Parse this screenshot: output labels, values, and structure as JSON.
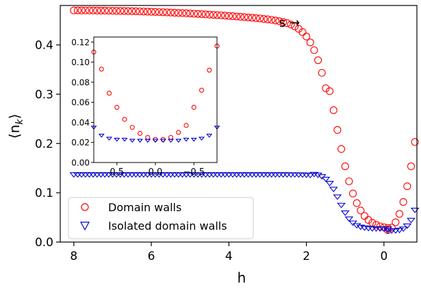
{
  "chart_data": [
    {
      "type": "scatter",
      "xlabel": "h",
      "ylabel": "⟨n_k⟩",
      "xlim": [
        8.35,
        -0.85
      ],
      "ylim": [
        0.0,
        0.48
      ],
      "x_ticks": [
        8,
        6,
        4,
        2,
        0
      ],
      "y_ticks": [
        0.0,
        0.1,
        0.2,
        0.3,
        0.4
      ],
      "x_tick_labels": [
        "8",
        "6",
        "4",
        "2",
        "0"
      ],
      "y_tick_labels": [
        "0.0",
        "0.1",
        "0.2",
        "0.3",
        "0.4"
      ],
      "annotation": "s →",
      "legend_position": "lower-left",
      "series": [
        {
          "name": "Domain walls",
          "marker": "circle",
          "color": "#ff0000",
          "x": [],
          "y": []
        },
        {
          "name": "Isolated domain walls",
          "marker": "triangle-down",
          "color": "#0000cc",
          "x": [],
          "y": []
        }
      ]
    },
    {
      "type": "scatter",
      "xlim": [
        0.8,
        -0.8
      ],
      "ylim": [
        0.0,
        0.125
      ],
      "x_ticks": [
        0.5,
        0.0,
        -0.5
      ],
      "y_ticks": [
        0.0,
        0.02,
        0.04,
        0.06,
        0.08,
        0.1,
        0.12
      ],
      "x_tick_labels": [
        "0.5",
        "0.0",
        "−0.5"
      ],
      "y_tick_labels": [
        "0.00",
        "0.02",
        "0.04",
        "0.06",
        "0.08",
        "0.10",
        "0.12"
      ],
      "series": [
        {
          "marker": "circle",
          "color": "#ff0000",
          "x": [
            0.8,
            0.7,
            0.6,
            0.5,
            0.4,
            0.3,
            0.2,
            0.1,
            0.0,
            -0.1,
            -0.2,
            -0.3,
            -0.4,
            -0.5,
            -0.6,
            -0.7,
            -0.8
          ],
          "y": [
            0.11,
            0.093,
            0.069,
            0.055,
            0.043,
            0.035,
            0.029,
            0.025,
            0.023,
            0.023,
            0.025,
            0.03,
            0.037,
            0.055,
            0.072,
            0.092,
            0.116
          ]
        },
        {
          "marker": "triangle-down",
          "color": "#0000cc",
          "x": [
            0.8,
            0.7,
            0.6,
            0.5,
            0.4,
            0.3,
            0.2,
            0.1,
            0.0,
            -0.1,
            -0.2,
            -0.3,
            -0.4,
            -0.5,
            -0.6,
            -0.7,
            -0.8
          ],
          "y": [
            0.035,
            0.027,
            0.024,
            0.023,
            0.023,
            0.022,
            0.022,
            0.022,
            0.022,
            0.022,
            0.022,
            0.022,
            0.023,
            0.023,
            0.024,
            0.027,
            0.035
          ]
        }
      ]
    }
  ]
}
